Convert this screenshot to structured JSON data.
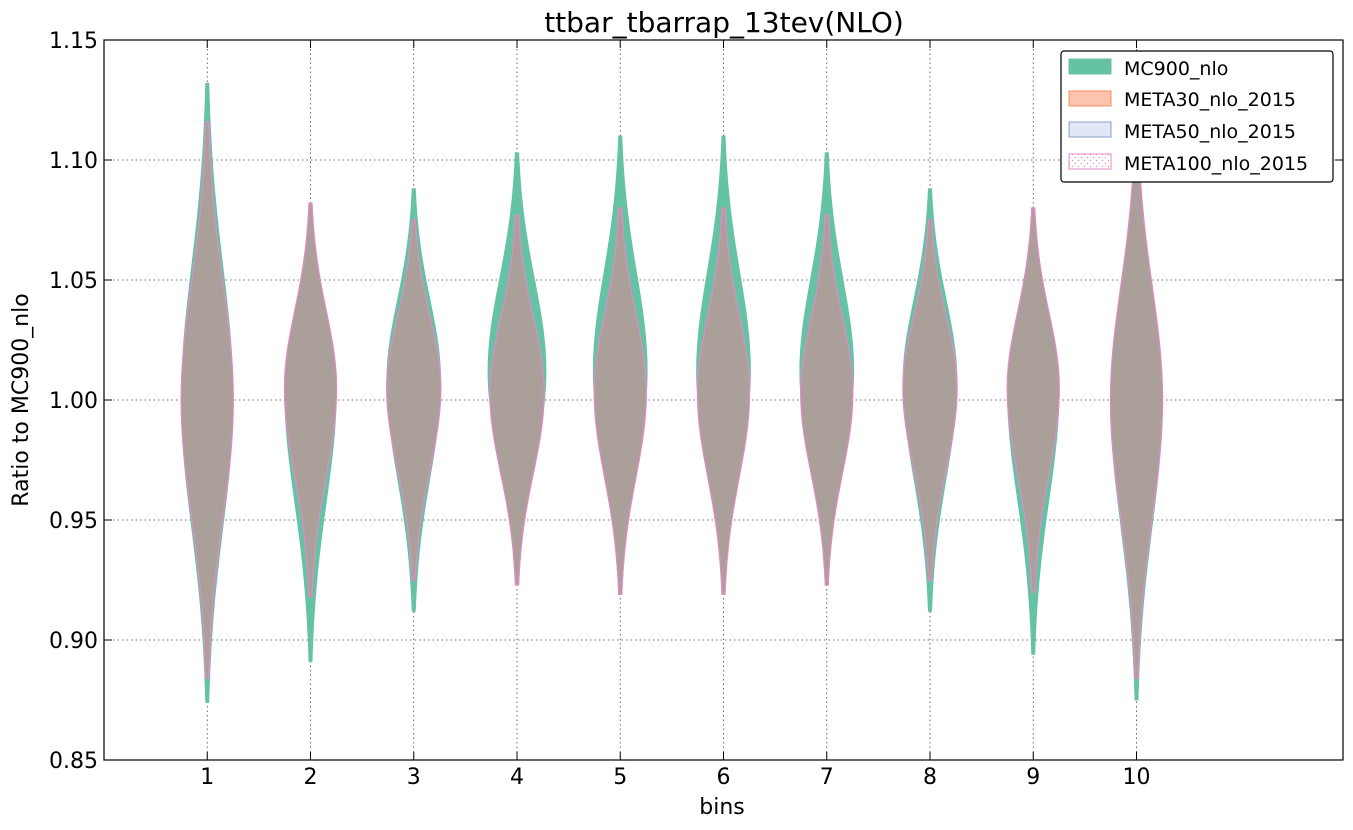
{
  "chart_data": {
    "type": "violin",
    "title": "ttbar_tbarrap_13tev(NLO)",
    "xlabel": "bins",
    "ylabel": "Ratio to MC900_nlo",
    "ylim": [
      0.85,
      1.15
    ],
    "xlim": [
      0,
      12
    ],
    "grid": true,
    "legend_position": "top-right",
    "y_ticks": [
      "0.85",
      "0.90",
      "0.95",
      "1.00",
      "1.05",
      "1.10",
      "1.15"
    ],
    "categories": [
      "1",
      "2",
      "3",
      "4",
      "5",
      "6",
      "7",
      "8",
      "9",
      "10"
    ],
    "series": [
      {
        "name": "MC900_nlo",
        "color": "#66c2a5",
        "ymin": [
          0.874,
          0.891,
          0.912,
          0.923,
          0.919,
          0.919,
          0.923,
          0.912,
          0.894,
          0.875
        ],
        "ymax": [
          1.132,
          1.082,
          1.088,
          1.103,
          1.11,
          1.11,
          1.103,
          1.088,
          1.08,
          1.113
        ],
        "peak_y": [
          1.0,
          1.005,
          1.008,
          1.012,
          1.012,
          1.012,
          1.012,
          1.008,
          1.005,
          1.0
        ],
        "half_width": [
          0.25,
          0.25,
          0.26,
          0.28,
          0.26,
          0.26,
          0.26,
          0.26,
          0.25,
          0.25
        ]
      },
      {
        "name": "META30_nlo_2015",
        "color": "#fc8d62",
        "ymin": [
          0.884,
          0.918,
          0.925,
          0.923,
          0.919,
          0.919,
          0.923,
          0.925,
          0.92,
          0.884
        ],
        "ymax": [
          1.116,
          1.082,
          1.075,
          1.077,
          1.08,
          1.08,
          1.077,
          1.075,
          1.08,
          1.113
        ],
        "peak_y": [
          1.0,
          1.005,
          1.005,
          1.003,
          1.003,
          1.003,
          1.003,
          1.005,
          1.005,
          1.0
        ],
        "half_width": [
          0.25,
          0.25,
          0.26,
          0.26,
          0.25,
          0.25,
          0.25,
          0.26,
          0.25,
          0.25
        ]
      },
      {
        "name": "META50_nlo_2015",
        "color": "#8da0cb",
        "ymin": [
          0.884,
          0.918,
          0.925,
          0.923,
          0.919,
          0.919,
          0.923,
          0.925,
          0.92,
          0.884
        ],
        "ymax": [
          1.116,
          1.082,
          1.075,
          1.077,
          1.08,
          1.08,
          1.077,
          1.075,
          1.08,
          1.113
        ],
        "peak_y": [
          1.0,
          1.005,
          1.005,
          1.003,
          1.003,
          1.003,
          1.003,
          1.005,
          1.005,
          1.0
        ],
        "half_width": [
          0.25,
          0.25,
          0.26,
          0.26,
          0.25,
          0.25,
          0.25,
          0.26,
          0.25,
          0.25
        ]
      },
      {
        "name": "META100_nlo_2015",
        "color": "#e78ac3",
        "ymin": [
          0.884,
          0.918,
          0.925,
          0.923,
          0.919,
          0.919,
          0.923,
          0.925,
          0.92,
          0.884
        ],
        "ymax": [
          1.116,
          1.082,
          1.075,
          1.077,
          1.08,
          1.08,
          1.077,
          1.075,
          1.08,
          1.113
        ],
        "peak_y": [
          1.0,
          1.005,
          1.005,
          1.003,
          1.003,
          1.003,
          1.003,
          1.005,
          1.005,
          1.0
        ],
        "half_width": [
          0.25,
          0.25,
          0.26,
          0.26,
          0.25,
          0.25,
          0.25,
          0.26,
          0.25,
          0.25
        ]
      }
    ],
    "overlap_color": "#ab9f99"
  }
}
